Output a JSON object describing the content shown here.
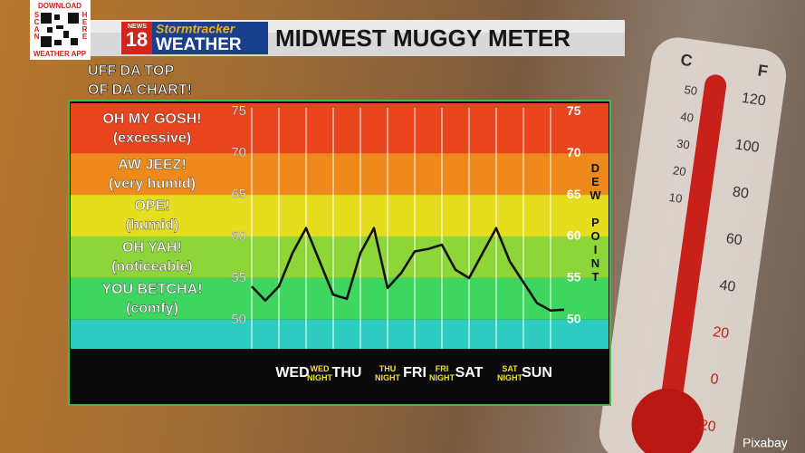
{
  "header": {
    "title": "MIDWEST MUGGY METER",
    "logo": {
      "news": "NEWS",
      "number": "18",
      "brand": "Stormtracker",
      "weather": "WEATHER"
    },
    "app_promo": {
      "top": "DOWNLOAD",
      "left": "SCAN",
      "right": "HERE",
      "bottom": "WEATHER APP"
    }
  },
  "chart_data": {
    "type": "line",
    "title": [
      "UFF DA TOP",
      "OF DA CHART!"
    ],
    "y_axis_label": "DEW POINT",
    "categories": [
      null,
      null,
      null,
      "WED",
      null,
      "WED NIGHT",
      null,
      "THU",
      null,
      null,
      "THU NIGHT",
      null,
      "FRI",
      null,
      "FRI NIGHT",
      null,
      "SAT",
      null,
      null,
      "SAT NIGHT",
      null,
      "SUN",
      null,
      null
    ],
    "values": [
      54,
      52.3,
      54,
      58,
      61,
      57,
      53,
      52.5,
      58,
      61,
      53.8,
      55.6,
      58.2,
      58.5,
      59,
      56,
      55,
      58,
      61,
      57,
      54.5,
      52,
      51.1,
      51.2
    ],
    "color": "#111111",
    "ylim": [
      46.5,
      76
    ],
    "yticks": [
      50,
      55,
      60,
      65,
      70,
      75
    ],
    "bands": [
      {
        "from": 70,
        "to": 76,
        "color": "#e8441e",
        "label": [
          "OH MY GOSH!",
          "(excessive)"
        ]
      },
      {
        "from": 65,
        "to": 70,
        "color": "#ee8a1c",
        "label": [
          "AW JEEZ!",
          "(very humid)"
        ]
      },
      {
        "from": 60,
        "to": 65,
        "color": "#e6dd1e",
        "label": [
          "OPE!",
          "(humid)"
        ]
      },
      {
        "from": 55,
        "to": 60,
        "color": "#8ed53a",
        "label": [
          "OH YAH!",
          "(noticeable)"
        ]
      },
      {
        "from": 50,
        "to": 55,
        "color": "#3ed65e",
        "label": [
          "YOU BETCHA!",
          "(comfy)"
        ]
      },
      {
        "from": 46.5,
        "to": 50,
        "color": "#2ecbc0"
      }
    ]
  },
  "thermometer": {
    "celsius_label": "C",
    "fahrenheit_label": "F",
    "celsius": [
      "50",
      "40",
      "30",
      "20",
      "10"
    ],
    "fahrenheit": [
      "120",
      "100",
      "80",
      "60",
      "40",
      "20",
      "0",
      "20"
    ]
  },
  "credit": "Pixabay"
}
